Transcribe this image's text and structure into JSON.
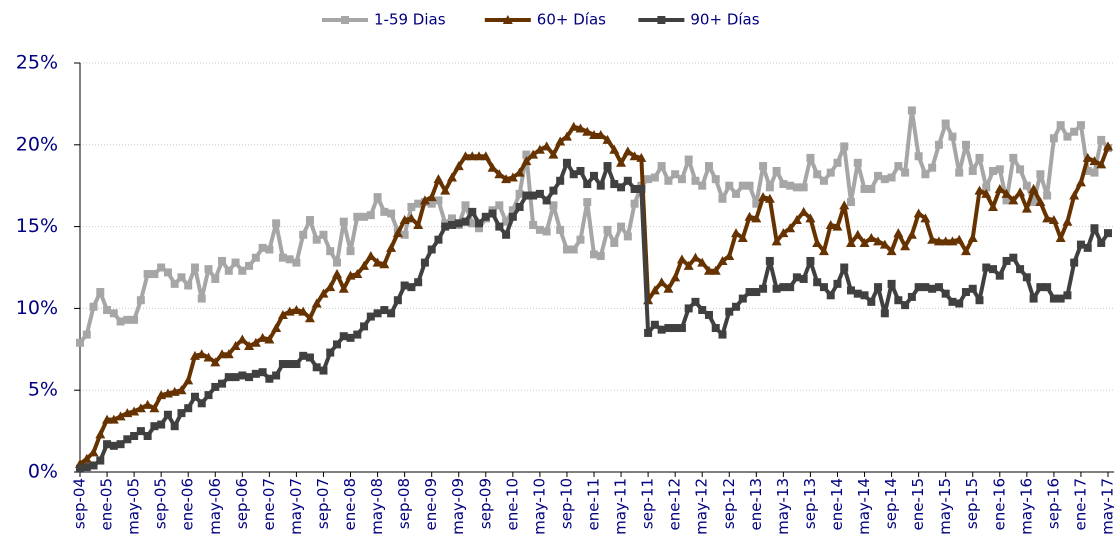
{
  "chart_data": {
    "type": "line",
    "categories": [
      "sep-04",
      null,
      null,
      null,
      "ene-05",
      null,
      null,
      null,
      "may-05",
      null,
      null,
      null,
      "sep-05",
      null,
      null,
      null,
      "ene-06",
      null,
      null,
      null,
      "may-06",
      null,
      null,
      null,
      "sep-06",
      null,
      null,
      null,
      "ene-07",
      null,
      null,
      null,
      "may-07",
      null,
      null,
      null,
      "sep-07",
      null,
      null,
      null,
      "ene-08",
      null,
      null,
      null,
      "may-08",
      null,
      null,
      null,
      "sep-08",
      null,
      null,
      null,
      "ene-09",
      null,
      null,
      null,
      "may-09",
      null,
      null,
      null,
      "sep-09",
      null,
      null,
      null,
      "ene-10",
      null,
      null,
      null,
      "may-10",
      null,
      null,
      null,
      "sep-10",
      null,
      null,
      null,
      "ene-11",
      null,
      null,
      null,
      "may-11",
      null,
      null,
      null,
      "sep-11",
      null,
      null,
      null,
      "ene-12",
      null,
      null,
      null,
      "may-12",
      null,
      null,
      null,
      "sep-12",
      null,
      null,
      null,
      "ene-13",
      null,
      null,
      null,
      "may-13",
      null,
      null,
      null,
      "sep-13",
      null,
      null,
      null,
      "ene-14",
      null,
      null,
      null,
      "may-14",
      null,
      null,
      null,
      "sep-14",
      null,
      null,
      null,
      "ene-15",
      null,
      null,
      null,
      "may-15",
      null,
      null,
      null,
      "sep-15",
      null,
      null,
      null,
      "ene-16",
      null,
      null,
      null,
      "may-16",
      null,
      null,
      null,
      "sep-16",
      null,
      null,
      null,
      "ene-17",
      null,
      null,
      null,
      "may-17"
    ],
    "series": [
      {
        "name": "1-59 Dias",
        "color": "#a6a6a6",
        "marker": "square",
        "values": [
          7.9,
          8.4,
          10.1,
          11.0,
          9.9,
          9.7,
          9.2,
          9.3,
          9.3,
          10.5,
          12.1,
          12.1,
          12.5,
          12.2,
          11.5,
          11.9,
          11.4,
          12.5,
          10.6,
          12.4,
          11.8,
          12.9,
          12.3,
          12.8,
          12.3,
          12.6,
          13.1,
          13.7,
          13.6,
          15.2,
          13.1,
          13.0,
          12.8,
          14.5,
          15.4,
          14.2,
          14.5,
          13.5,
          12.8,
          15.3,
          13.5,
          15.6,
          15.6,
          15.7,
          16.8,
          15.9,
          15.8,
          14.7,
          14.5,
          16.2,
          16.4,
          16.5,
          16.4,
          16.6,
          15.2,
          15.5,
          15.1,
          16.3,
          15.2,
          14.9,
          15.5,
          16.0,
          16.3,
          15.3,
          16.0,
          17.0,
          19.4,
          15.1,
          14.8,
          14.7,
          16.3,
          14.8,
          13.6,
          13.6,
          14.2,
          16.5,
          13.3,
          13.2,
          14.8,
          14.0,
          15.0,
          14.4,
          16.4,
          17.5,
          17.9,
          18.0,
          18.7,
          17.8,
          18.2,
          17.9,
          19.1,
          17.8,
          17.5,
          18.7,
          17.9,
          16.7,
          17.5,
          17.0,
          17.5,
          17.5,
          16.4,
          18.7,
          17.4,
          18.4,
          17.6,
          17.5,
          17.4,
          17.4,
          19.2,
          18.2,
          17.8,
          18.3,
          18.9,
          19.9,
          16.5,
          18.9,
          17.3,
          17.3,
          18.1,
          17.9,
          18.0,
          18.7,
          18.3,
          22.1,
          19.3,
          18.2,
          18.6,
          20.0,
          21.3,
          20.5,
          18.3,
          20.0,
          18.4,
          19.2,
          17.4,
          18.4,
          18.5,
          16.6,
          19.2,
          18.5,
          17.5,
          16.5,
          18.2,
          16.9,
          20.4,
          21.2,
          20.5,
          20.8,
          21.2,
          18.4,
          18.3,
          20.3,
          19.8
        ]
      },
      {
        "name": "60+ Días",
        "color": "#663300",
        "marker": "triangle",
        "values": [
          0.5,
          0.8,
          1.2,
          2.3,
          3.2,
          3.2,
          3.4,
          3.6,
          3.7,
          3.9,
          4.1,
          3.9,
          4.7,
          4.8,
          4.9,
          5.0,
          5.6,
          7.1,
          7.2,
          7.0,
          6.7,
          7.2,
          7.2,
          7.7,
          8.1,
          7.7,
          7.9,
          8.2,
          8.1,
          8.8,
          9.6,
          9.8,
          9.9,
          9.8,
          9.4,
          10.3,
          10.9,
          11.3,
          12.1,
          11.2,
          12.0,
          12.1,
          12.6,
          13.2,
          12.8,
          12.7,
          13.7,
          14.6,
          15.4,
          15.5,
          15.1,
          16.6,
          16.8,
          17.9,
          17.2,
          18.0,
          18.7,
          19.3,
          19.3,
          19.3,
          19.3,
          18.6,
          18.2,
          17.9,
          18.0,
          18.3,
          19.0,
          19.4,
          19.7,
          19.9,
          19.4,
          20.2,
          20.5,
          21.1,
          21.0,
          20.8,
          20.6,
          20.6,
          20.3,
          19.7,
          18.9,
          19.6,
          19.3,
          19.2,
          10.5,
          11.1,
          11.6,
          11.2,
          11.9,
          13.0,
          12.6,
          13.1,
          12.8,
          12.3,
          12.3,
          12.9,
          13.2,
          14.6,
          14.3,
          15.6,
          15.5,
          16.8,
          16.7,
          14.1,
          14.6,
          14.9,
          15.4,
          15.9,
          15.5,
          14.0,
          13.5,
          15.1,
          15.0,
          16.3,
          14.0,
          14.5,
          14.0,
          14.3,
          14.1,
          13.9,
          13.5,
          14.6,
          13.8,
          14.5,
          15.8,
          15.5,
          14.2,
          14.1,
          14.1,
          14.1,
          14.2,
          13.5,
          14.3,
          17.2,
          17.0,
          16.2,
          17.3,
          17.0,
          16.6,
          17.1,
          16.1,
          17.3,
          16.5,
          15.5,
          15.4,
          14.3,
          15.3,
          16.9,
          17.7,
          19.2,
          19.0,
          18.8,
          19.9
        ]
      },
      {
        "name": "90+ Días",
        "color": "#404040",
        "marker": "square",
        "values": [
          0.2,
          0.3,
          0.4,
          0.7,
          1.7,
          1.6,
          1.7,
          2.0,
          2.2,
          2.5,
          2.2,
          2.8,
          2.9,
          3.5,
          2.8,
          3.6,
          3.9,
          4.6,
          4.2,
          4.7,
          5.2,
          5.4,
          5.8,
          5.8,
          5.9,
          5.8,
          6.0,
          6.1,
          5.7,
          5.9,
          6.6,
          6.6,
          6.6,
          7.1,
          7.0,
          6.4,
          6.2,
          7.3,
          7.8,
          8.3,
          8.2,
          8.4,
          8.9,
          9.5,
          9.7,
          9.9,
          9.7,
          10.5,
          11.4,
          11.3,
          11.6,
          12.8,
          13.6,
          14.2,
          15.0,
          15.1,
          15.2,
          15.3,
          15.9,
          15.2,
          15.6,
          15.8,
          15.0,
          14.5,
          15.6,
          16.2,
          16.9,
          16.9,
          17.0,
          16.6,
          17.2,
          17.8,
          18.9,
          18.2,
          18.4,
          17.6,
          18.1,
          17.5,
          18.7,
          17.6,
          17.4,
          17.8,
          17.3,
          17.3,
          8.5,
          9.0,
          8.7,
          8.8,
          8.8,
          8.8,
          10.0,
          10.4,
          9.9,
          9.6,
          8.8,
          8.4,
          9.8,
          10.1,
          10.6,
          11.0,
          11.0,
          11.2,
          12.9,
          11.2,
          11.3,
          11.3,
          11.9,
          11.8,
          12.9,
          11.6,
          11.3,
          10.8,
          11.5,
          12.5,
          11.1,
          10.9,
          10.8,
          10.4,
          11.3,
          9.7,
          11.5,
          10.5,
          10.2,
          10.7,
          11.3,
          11.3,
          11.2,
          11.3,
          10.9,
          10.4,
          10.3,
          11.0,
          11.2,
          10.5,
          12.5,
          12.4,
          12.0,
          12.9,
          13.1,
          12.4,
          11.9,
          10.6,
          11.3,
          11.3,
          10.6,
          10.6,
          10.8,
          12.8,
          13.9,
          13.7,
          14.9,
          14.0,
          14.6
        ]
      }
    ],
    "ylim": [
      0,
      25
    ],
    "yticks": [
      {
        "value": 0,
        "label": "0%"
      },
      {
        "value": 5,
        "label": "5%"
      },
      {
        "value": 10,
        "label": "10%"
      },
      {
        "value": 15,
        "label": "15%"
      },
      {
        "value": 20,
        "label": "20%"
      },
      {
        "value": 25,
        "label": "25%"
      }
    ],
    "grid": true,
    "legend": "top"
  }
}
